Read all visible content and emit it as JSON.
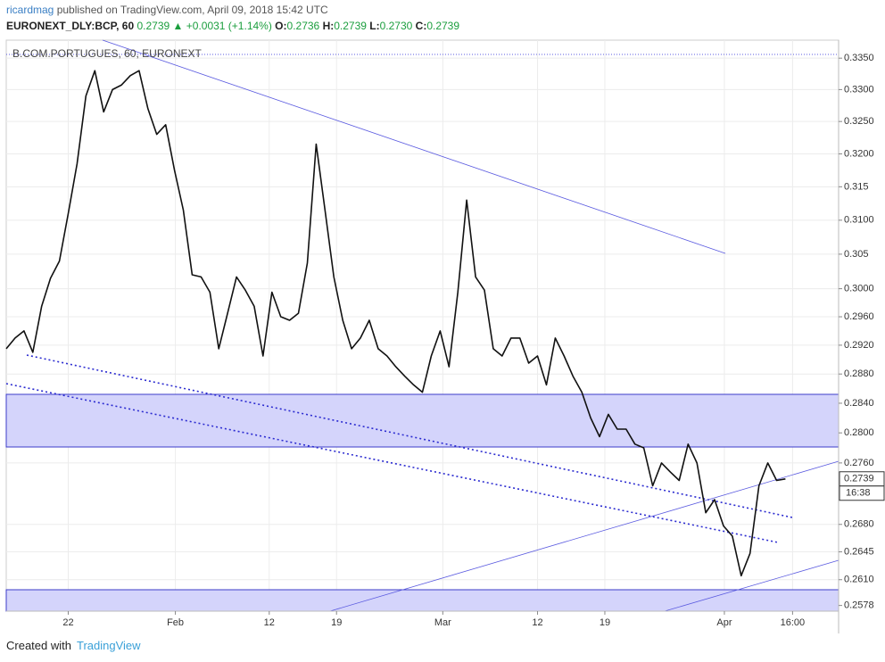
{
  "header": {
    "author": "ricardmag",
    "published": "published on TradingView.com, April 09, 2018 15:42 UTC",
    "symbol": "EURONEXT_DLY:BCP, 60",
    "price": "0.2739",
    "change": "▲ +0.0031 (+1.14%)",
    "ohlc": [
      [
        "O:",
        "0.2736"
      ],
      [
        "H:",
        "0.2739"
      ],
      [
        "L:",
        "0.2730"
      ],
      [
        "C:",
        "0.2739"
      ]
    ]
  },
  "footer": {
    "created": "Created with",
    "brand": "TradingView"
  },
  "chart_data": {
    "type": "line",
    "title": "B.COM.PORTUGUES, 60, EURONEXT",
    "color": "#111111",
    "log": true,
    "grid": true,
    "x": [
      0,
      1,
      2,
      3,
      4,
      5,
      6,
      7,
      8,
      9,
      10,
      11,
      12,
      13,
      14,
      15,
      16,
      17,
      18,
      19,
      20,
      21,
      22,
      23,
      24,
      25,
      26,
      27,
      28,
      29,
      30,
      31,
      32,
      33,
      34,
      35,
      36,
      37,
      38,
      39,
      40,
      41,
      42,
      43,
      44,
      45,
      46,
      47,
      48,
      49,
      50,
      51,
      52,
      53,
      54,
      55,
      56,
      57,
      58,
      59,
      60,
      61,
      62,
      63,
      64,
      65,
      66,
      67,
      68,
      69,
      70,
      71,
      72,
      73,
      74,
      75,
      76,
      77,
      78,
      79,
      80,
      81,
      82,
      83,
      84,
      85,
      86,
      87,
      88
    ],
    "values": [
      0.2915,
      0.293,
      0.294,
      0.291,
      0.2975,
      0.3015,
      0.304,
      0.311,
      0.3185,
      0.329,
      0.333,
      0.3265,
      0.33,
      0.3307,
      0.3322,
      0.333,
      0.327,
      0.323,
      0.3245,
      0.3175,
      0.3115,
      0.302,
      0.3017,
      0.2995,
      0.2915,
      0.2965,
      0.3017,
      0.2998,
      0.2975,
      0.2905,
      0.2995,
      0.296,
      0.2955,
      0.2965,
      0.3037,
      0.3215,
      0.3115,
      0.3017,
      0.2955,
      0.2915,
      0.293,
      0.2955,
      0.2915,
      0.2905,
      0.289,
      0.2877,
      0.2865,
      0.2855,
      0.2905,
      0.294,
      0.289,
      0.2995,
      0.313,
      0.3017,
      0.2998,
      0.2915,
      0.2905,
      0.293,
      0.293,
      0.2895,
      0.2905,
      0.2865,
      0.293,
      0.2905,
      0.2877,
      0.2855,
      0.282,
      0.2795,
      0.2825,
      0.2805,
      0.2805,
      0.2785,
      0.278,
      0.273,
      0.276,
      0.2748,
      0.2737,
      0.2785,
      0.276,
      0.2695,
      0.2712,
      0.2678,
      0.2665,
      0.2615,
      0.2643,
      0.273,
      0.276,
      0.2737,
      0.2739
    ],
    "xlim": [
      0,
      94
    ],
    "ylim": [
      0.2571,
      0.3379
    ],
    "xticks": [
      {
        "value": 7,
        "label": "22"
      },
      {
        "value": 19.1,
        "label": "Feb"
      },
      {
        "value": 29.7,
        "label": "12"
      },
      {
        "value": 37.3,
        "label": "19"
      },
      {
        "value": 49.3,
        "label": "Mar"
      },
      {
        "value": 60,
        "label": "12"
      },
      {
        "value": 67.6,
        "label": "19"
      },
      {
        "value": 81.1,
        "label": "Apr"
      },
      {
        "value": 88.8,
        "label": "16:00"
      }
    ],
    "yticks": [
      {
        "value": 0.335,
        "label": "0.3350"
      },
      {
        "value": 0.33,
        "label": "0.3300"
      },
      {
        "value": 0.325,
        "label": "0.3250"
      },
      {
        "value": 0.32,
        "label": "0.3200"
      },
      0.315,
      {
        "value": 0.31,
        "label": "0.3100"
      },
      0.305,
      {
        "value": 0.3,
        "label": "0.3000"
      },
      {
        "value": 0.296,
        "label": "0.2960"
      },
      {
        "value": 0.292,
        "label": "0.2920"
      },
      {
        "value": 0.288,
        "label": "0.2880"
      },
      {
        "value": 0.284,
        "label": "0.2840"
      },
      {
        "value": 0.28,
        "label": "0.2800"
      },
      {
        "value": 0.276,
        "label": "0.2760"
      },
      {
        "value": 0.268,
        "label": "0.2680"
      },
      0.2645,
      {
        "value": 0.261,
        "label": "0.2610"
      },
      0.2578
    ],
    "last_price": 0.2739,
    "countdown": "16:38"
  }
}
